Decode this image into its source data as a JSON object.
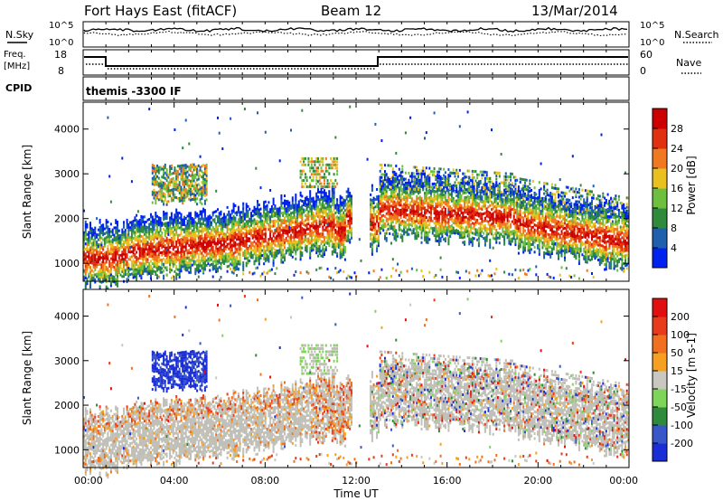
{
  "header": {
    "station": "Fort Hays East (fitACF)",
    "beam": "Beam 12",
    "date": "13/Mar/2014"
  },
  "noise_panel": {
    "left_label": "N.Sky",
    "right_label": "N.Search",
    "left_ticks": [
      "10^5",
      "10^0"
    ],
    "right_ticks": [
      "10^5",
      "10^0"
    ]
  },
  "freq_panel": {
    "left_label": "Freq.",
    "left_unit": "[MHz]",
    "right_label": "Nave",
    "left_ticks": [
      "18",
      "8"
    ],
    "right_ticks": [
      "60",
      "0"
    ]
  },
  "cpid": {
    "label": "CPID",
    "value": "themis -3300 IF"
  },
  "chart_data": [
    {
      "type": "heatmap",
      "title": "",
      "xlabel": "",
      "ylabel": "Slant Range [km]",
      "y_ticks": [
        "1000",
        "2000",
        "3000",
        "4000"
      ],
      "ylim": [
        600,
        4600
      ],
      "xlim": [
        "00:00",
        "24:00"
      ],
      "colorbar": {
        "label": "Power [dB]",
        "ticks": [
          "4",
          "8",
          "12",
          "16",
          "20",
          "24",
          "28"
        ],
        "colors": [
          "#0022ee",
          "#1f5fae",
          "#2f8a3c",
          "#6fbf3f",
          "#e8c020",
          "#f07820",
          "#e03010",
          "#cc0000"
        ]
      }
    },
    {
      "type": "heatmap",
      "title": "",
      "xlabel": "Time UT",
      "ylabel": "Slant Range [km]",
      "y_ticks": [
        "1000",
        "2000",
        "3000",
        "4000"
      ],
      "x_ticks": [
        "00:00",
        "04:00",
        "08:00",
        "12:00",
        "16:00",
        "20:00",
        "00:00"
      ],
      "ylim": [
        600,
        4600
      ],
      "xlim": [
        "00:00",
        "24:00"
      ],
      "colorbar": {
        "label": "Velocity [m s-1]",
        "ticks": [
          "200",
          "100",
          "50",
          "15",
          "-15",
          "-50",
          "-100",
          "-200"
        ],
        "colors": [
          "#1a2dd6",
          "#3a57c9",
          "#2f8a3c",
          "#7fd45a",
          "#c8c8c0",
          "#f5a020",
          "#f07020",
          "#e83a1c",
          "#e01010"
        ]
      }
    }
  ],
  "colors": {
    "ground_scatter": "#c0c0b8",
    "axis": "#000000"
  }
}
